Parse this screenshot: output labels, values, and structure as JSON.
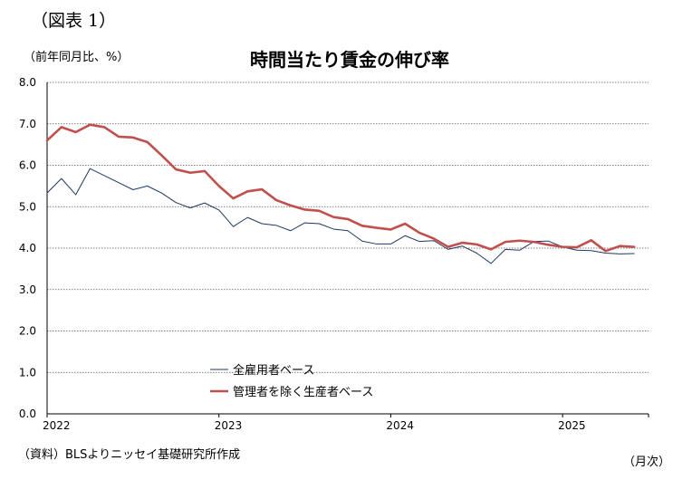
{
  "figure_label": "（図表 1）",
  "unit_label": "（前年同月比、%）",
  "source_note": "（資料）BLSよりニッセイ基礎研究所作成",
  "period_unit": "（月次）",
  "colors": {
    "all_employees": "#1f3864",
    "production_nonsupervisory": "#c0504d",
    "grid": "#555555",
    "axis": "#000000"
  },
  "chart_data": {
    "type": "line",
    "title": "時間当たり賃金の伸び率",
    "ylabel": "（前年同月比、%）",
    "xlabel": "（月次）",
    "ylim": [
      0.0,
      8.0
    ],
    "y_ticks": [
      "0.0",
      "1.0",
      "2.0",
      "3.0",
      "4.0",
      "5.0",
      "6.0",
      "7.0",
      "8.0"
    ],
    "x_tick_labels": [
      {
        "label": "2022",
        "month_index": 0
      },
      {
        "label": "2023",
        "month_index": 12
      },
      {
        "label": "2024",
        "month_index": 24
      },
      {
        "label": "2025",
        "month_index": 36
      }
    ],
    "x_range_months": [
      0,
      42
    ],
    "grid": "horizontal dotted",
    "legend_position": "lower-left",
    "series": [
      {
        "name": "全雇用者ベース",
        "color": "#1f3864",
        "values": [
          5.33,
          5.68,
          5.29,
          5.92,
          5.75,
          5.58,
          5.41,
          5.5,
          5.33,
          5.1,
          4.97,
          5.09,
          4.92,
          4.52,
          4.74,
          4.59,
          4.55,
          4.42,
          4.61,
          4.59,
          4.46,
          4.42,
          4.17,
          4.1,
          4.1,
          4.3,
          4.16,
          4.18,
          3.97,
          4.05,
          3.88,
          3.63,
          3.97,
          3.95,
          4.16,
          4.17,
          4.03,
          3.95,
          3.94,
          3.88,
          3.86,
          3.87
        ]
      },
      {
        "name": "管理者を除く生産者ベース",
        "color": "#c0504d",
        "values": [
          6.6,
          6.92,
          6.8,
          6.98,
          6.92,
          6.69,
          6.67,
          6.56,
          6.24,
          5.9,
          5.82,
          5.86,
          5.5,
          5.2,
          5.37,
          5.42,
          5.16,
          5.03,
          4.93,
          4.9,
          4.75,
          4.7,
          4.54,
          4.49,
          4.45,
          4.59,
          4.37,
          4.23,
          4.03,
          4.13,
          4.09,
          3.97,
          4.15,
          4.18,
          4.15,
          4.08,
          4.03,
          4.02,
          4.19,
          3.93,
          4.05,
          4.03
        ]
      }
    ]
  }
}
